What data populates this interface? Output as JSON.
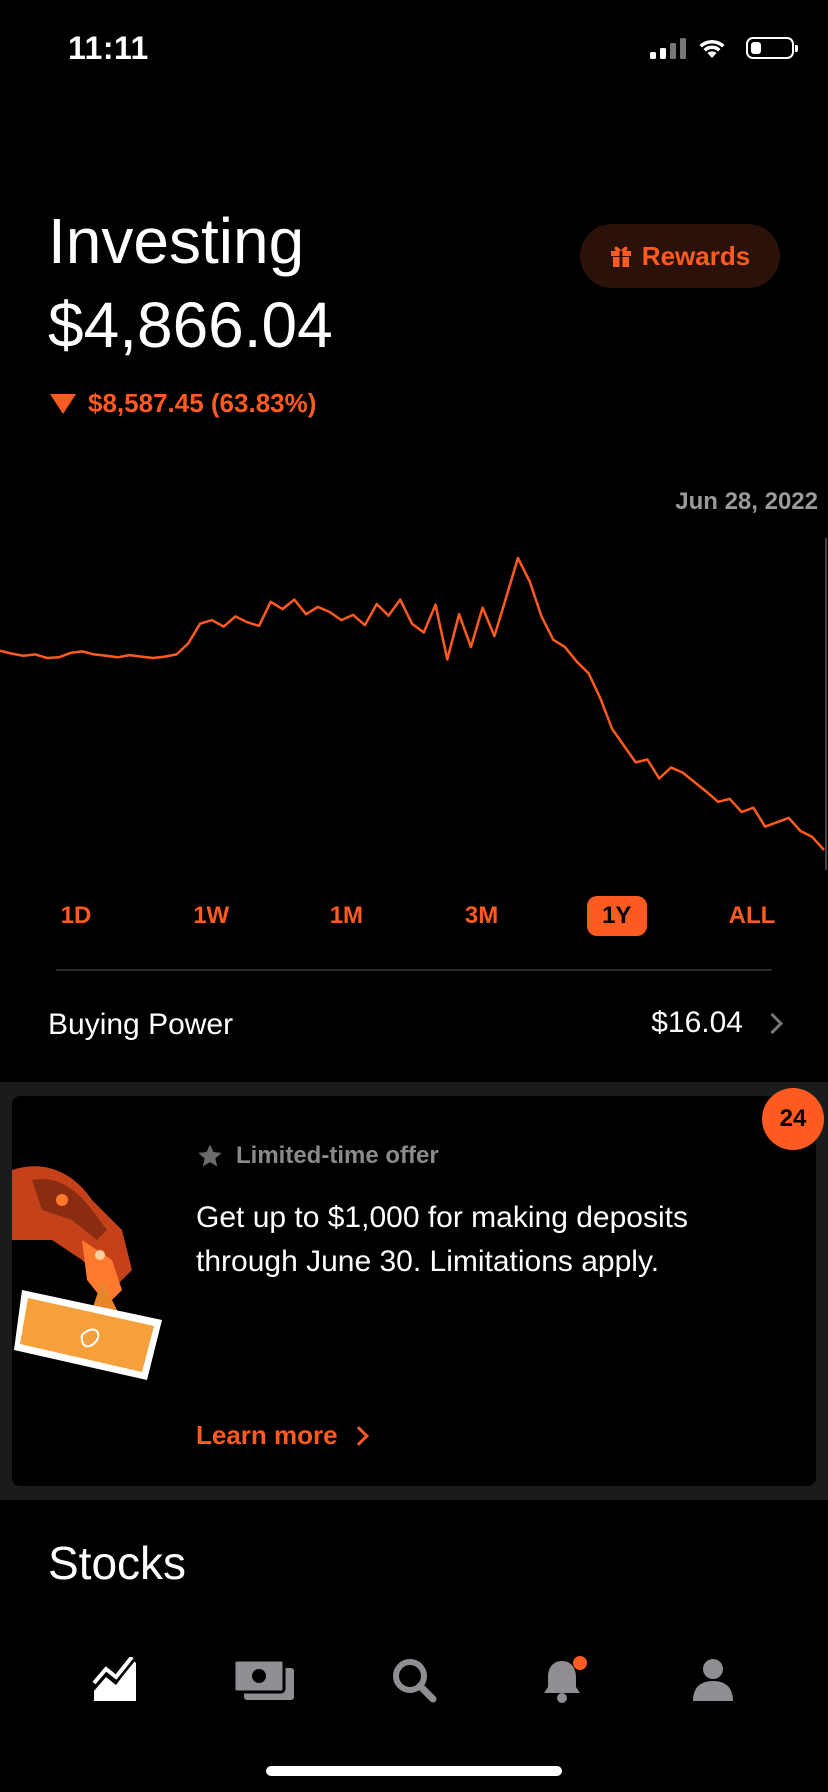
{
  "status_bar": {
    "time": "11:11"
  },
  "header": {
    "title": "Investing",
    "portfolio_value": "$4,866.04",
    "change_text": "$8,587.45 (63.83%)",
    "change_direction": "down",
    "rewards_label": "Rewards"
  },
  "chart": {
    "date_label": "Jun 28, 2022",
    "chart_data": {
      "type": "line",
      "title": "",
      "x": [
        0,
        1,
        2,
        3,
        4,
        5,
        6,
        7,
        8,
        9,
        10,
        11,
        12,
        13,
        14,
        15,
        16,
        17,
        18,
        19,
        20,
        21,
        22,
        23,
        24,
        25,
        26,
        27,
        28,
        29,
        30,
        31,
        32,
        33,
        34,
        35,
        36,
        37,
        38,
        39,
        40,
        41,
        42,
        43,
        44,
        45,
        46,
        47,
        48,
        49,
        50,
        51,
        52,
        53,
        54,
        55,
        56,
        57,
        58,
        59,
        60,
        61,
        62,
        63,
        64,
        65,
        66,
        67,
        68,
        69,
        70
      ],
      "values": [
        13.45,
        13.41,
        13.38,
        13.4,
        13.35,
        13.36,
        13.42,
        13.44,
        13.4,
        13.38,
        13.36,
        13.39,
        13.37,
        13.35,
        13.37,
        13.4,
        13.55,
        13.82,
        13.87,
        13.78,
        13.92,
        13.84,
        13.79,
        14.12,
        14.02,
        14.15,
        13.95,
        14.05,
        13.98,
        13.87,
        13.94,
        13.8,
        14.09,
        13.93,
        14.15,
        13.82,
        13.7,
        14.08,
        13.33,
        13.95,
        13.5,
        14.04,
        13.65,
        14.18,
        14.72,
        14.4,
        13.92,
        13.6,
        13.5,
        13.3,
        13.14,
        12.8,
        12.38,
        12.15,
        11.92,
        11.96,
        11.7,
        11.85,
        11.78,
        11.65,
        11.52,
        11.38,
        11.42,
        11.24,
        11.3,
        11.04,
        11.1,
        11.16,
        10.98,
        10.9,
        10.72
      ],
      "series_color": "#ff5a1f",
      "xlabel": "",
      "ylabel": "",
      "grid": false,
      "legend": "none"
    }
  },
  "ranges": {
    "items": [
      {
        "label": "1D",
        "active": false
      },
      {
        "label": "1W",
        "active": false
      },
      {
        "label": "1M",
        "active": false
      },
      {
        "label": "3M",
        "active": false
      },
      {
        "label": "1Y",
        "active": true
      },
      {
        "label": "ALL",
        "active": false
      }
    ]
  },
  "buying_power": {
    "label": "Buying Power",
    "value": "$16.04"
  },
  "offer": {
    "badge_count": "24",
    "tag": "Limited-time offer",
    "text": "Get up to $1,000 for making deposits through June 30. Limitations apply.",
    "cta": "Learn more"
  },
  "stocks": {
    "title": "Stocks"
  },
  "tabbar": {
    "items": [
      "chart-icon",
      "cash-icon",
      "search-icon",
      "bell-icon",
      "person-icon"
    ],
    "active_color": "#ffffff",
    "inactive_color": "#8e8e93",
    "notification_dot_color": "#ff5a1f"
  },
  "colors": {
    "accent": "#ff5a1f",
    "background": "#000000",
    "band": "#1a1b1d"
  }
}
